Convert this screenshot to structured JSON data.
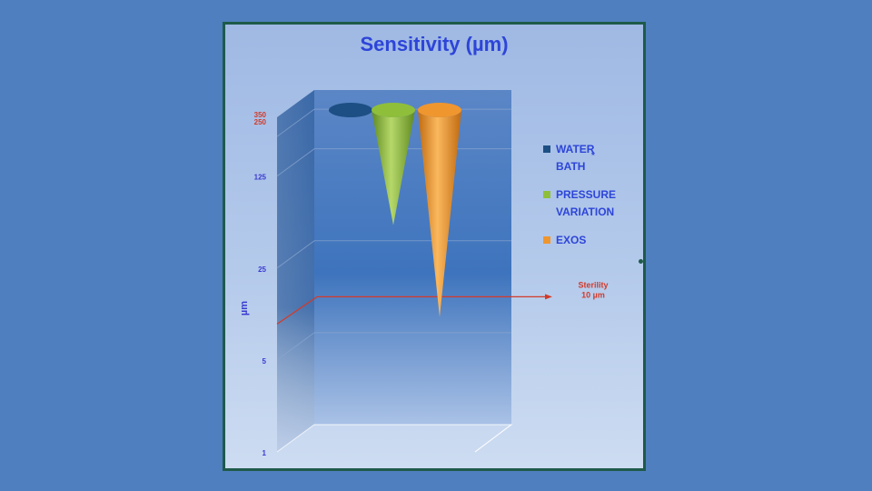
{
  "chart_data": {
    "type": "bar",
    "title": "Sensitivity (µm)",
    "ylabel": "µm",
    "y_scale": "log",
    "ylim": [
      1,
      350
    ],
    "y_ticks": [
      {
        "label": "1",
        "value": 1,
        "color": "#3a3ad0"
      },
      {
        "label": "5",
        "value": 5,
        "color": "#3a3ad0"
      },
      {
        "label": "25",
        "value": 25,
        "color": "#3a3ad0"
      },
      {
        "label": "125",
        "value": 125,
        "color": "#3a3ad0"
      },
      {
        "label": "250",
        "value": 250,
        "color": "#d23a2a"
      },
      {
        "label": "350",
        "value": 350,
        "color": "#d23a2a"
      }
    ],
    "series": [
      {
        "name": "WATER BATH",
        "value": 250,
        "color": "#1d4f84",
        "dark": "#0f3560",
        "light": "#3a74b0"
      },
      {
        "name": "PRESSURE VARIATION",
        "value": 35,
        "color": "#8fbf3a",
        "dark": "#5f8a1f",
        "light": "#b6d86a"
      },
      {
        "name": "EXOS",
        "value": 7,
        "color": "#f0962e",
        "dark": "#c06a10",
        "light": "#fbb85e"
      }
    ],
    "series_top_value": 350,
    "reference_line": {
      "label_line1": "Sterility",
      "label_line2": "10 µm",
      "value": 10,
      "color": "#d23a2a"
    },
    "legend_position": "right",
    "legend_marker_text": "*",
    "grid": true
  }
}
